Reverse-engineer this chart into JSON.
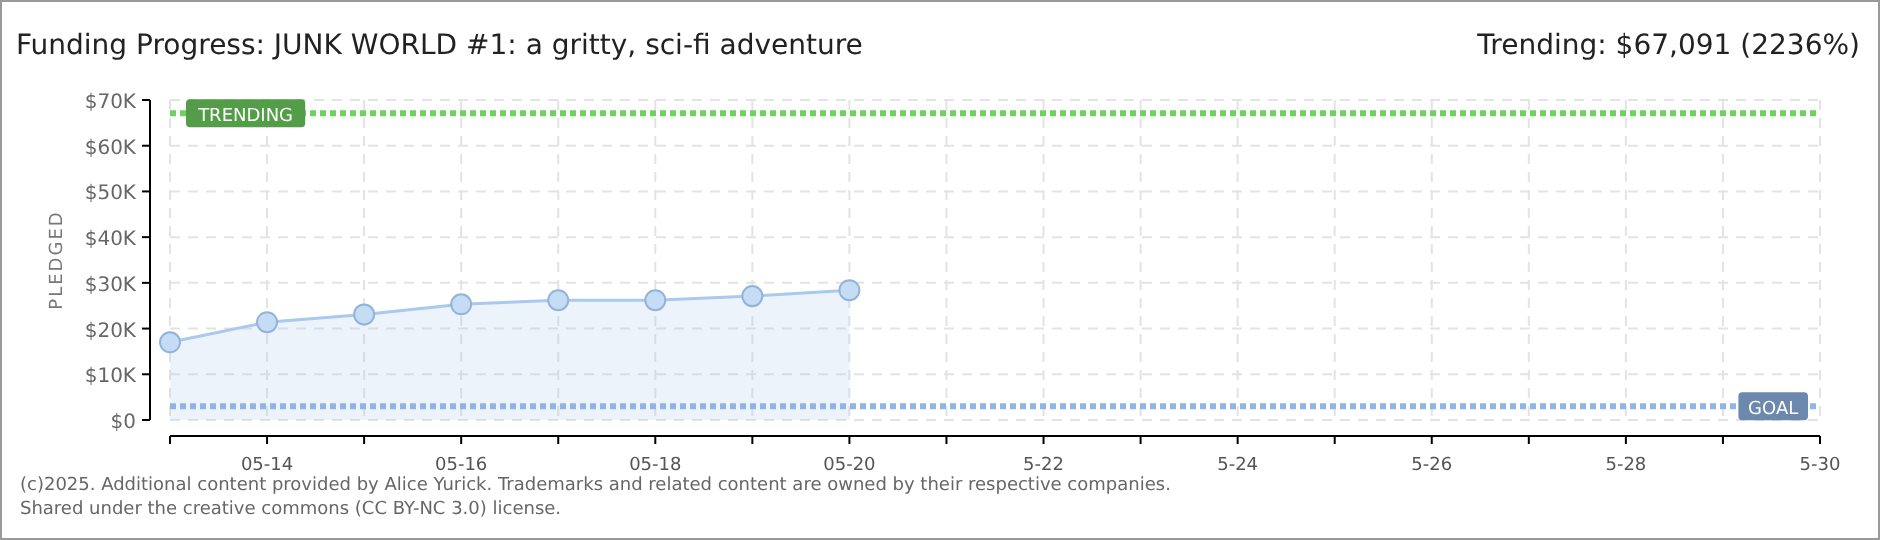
{
  "chart_data": {
    "type": "area",
    "title": "Funding Progress: JUNK WORLD #1: a gritty, sci-fi adventure",
    "subtitle": "Trending: $67,091 (2236%)",
    "ylabel": "PLEDGED",
    "x": [
      "--05-13",
      "--05-14",
      "--05-15",
      "--05-16",
      "--05-17",
      "--05-18",
      "--05-19",
      "--05-20"
    ],
    "series": [
      {
        "color": "#a9c9ee",
        "values": [
          17000,
          21400,
          23100,
          25300,
          26200,
          26200,
          27100,
          28400
        ]
      }
    ],
    "marker": "circle",
    "grid": true,
    "xlim": [
      "--05-13",
      "--05-30"
    ],
    "xticks": [
      {
        "value": "--05-13",
        "label": null
      },
      {
        "value": "--05-14",
        "label": "05-14"
      },
      {
        "value": "--05-15",
        "label": null
      },
      {
        "value": "--05-16",
        "label": "05-16"
      },
      {
        "value": "--05-17",
        "label": null
      },
      {
        "value": "--05-18",
        "label": "05-18"
      },
      {
        "value": "--05-19",
        "label": null
      },
      {
        "value": "--05-20",
        "label": "05-20"
      },
      {
        "value": "--05-21",
        "label": null
      },
      {
        "value": "--05-22",
        "label": "5-22"
      },
      {
        "value": "--05-23",
        "label": null
      },
      {
        "value": "--05-24",
        "label": "5-24"
      },
      {
        "value": "--05-25",
        "label": null
      },
      {
        "value": "--05-26",
        "label": "5-26"
      },
      {
        "value": "--05-27",
        "label": null
      },
      {
        "value": "--05-28",
        "label": "5-28"
      },
      {
        "value": "--05-29",
        "label": null
      },
      {
        "value": "--05-30",
        "label": "5-30"
      }
    ],
    "ylim": [
      0,
      70000
    ],
    "yticks": [
      {
        "value": 0,
        "label": "$0"
      },
      {
        "value": 10000,
        "label": "$10K"
      },
      {
        "value": 20000,
        "label": "$20K"
      },
      {
        "value": 30000,
        "label": "$30K"
      },
      {
        "value": 40000,
        "label": "$40K"
      },
      {
        "value": 50000,
        "label": "$50K"
      },
      {
        "value": 60000,
        "label": "$60K"
      },
      {
        "value": 70000,
        "label": "$70K"
      }
    ],
    "ref_lines": [
      {
        "axis": "y",
        "value": 67091,
        "label": "TRENDING",
        "color": "#6fd160",
        "line_style": "dotted"
      },
      {
        "axis": "y",
        "value": 3000,
        "label": "GOAL",
        "color": "#8fb5e6",
        "line_style": "dotted"
      }
    ],
    "annotations": [
      "(c)2025. Additional content provided by Alice Yurick. Trademarks and related content are owned by their respective companies.",
      "Shared under the creative commons (CC BY-NC 3.0) license."
    ]
  }
}
